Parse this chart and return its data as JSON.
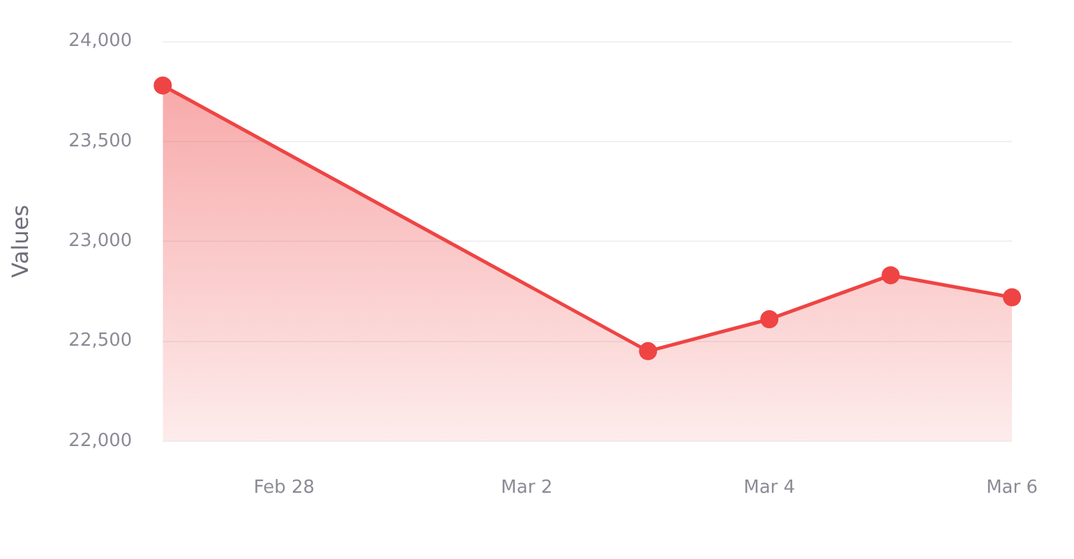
{
  "chart_data": {
    "type": "area",
    "ylabel": "Values",
    "x": [
      "--02-27",
      "--03-03",
      "--03-04",
      "--03-05",
      "--03-06"
    ],
    "series": [
      {
        "color": "#ef4444",
        "values": [
          23780,
          22450,
          22610,
          22830,
          22720
        ]
      }
    ],
    "xlim": [
      "--02-27",
      "--03-06"
    ],
    "xticks": [
      {
        "value": "--02-28",
        "label": "Feb 28"
      },
      {
        "value": "--03-02",
        "label": "Mar 2"
      },
      {
        "value": "--03-04",
        "label": "Mar 4"
      },
      {
        "value": "--03-06",
        "label": "Mar 6"
      }
    ],
    "ylim": [
      22000,
      24000
    ],
    "yticks": [
      {
        "value": 22000,
        "label": "22,000"
      },
      {
        "value": 22500,
        "label": "22,500"
      },
      {
        "value": 23000,
        "label": "23,000"
      },
      {
        "value": 23500,
        "label": "23,500"
      },
      {
        "value": 24000,
        "label": "24,000"
      }
    ],
    "grid": "y",
    "legend": false,
    "marker": "circle",
    "line_style": "solid"
  }
}
